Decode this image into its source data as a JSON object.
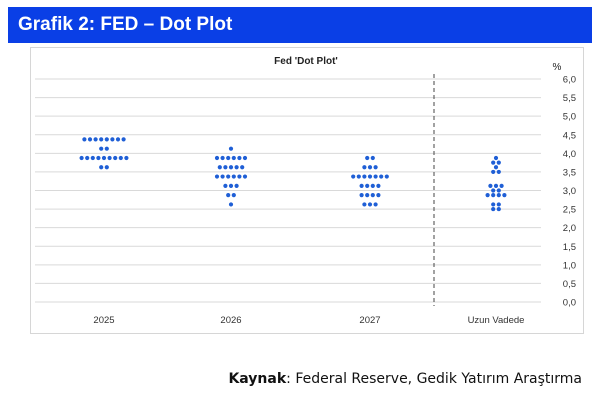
{
  "header": {
    "title": "Grafik 2: FED – Dot Plot"
  },
  "source": {
    "label": "Kaynak",
    "separator": ": ",
    "text": "Federal Reserve, Gedik Yatırım Araştırma"
  },
  "colors": {
    "banner": "#0a3fe6",
    "dot": "#1f5fd6",
    "grid": "#d9d9d9",
    "divider": "#444444"
  },
  "chart_data": {
    "type": "scatter",
    "title": "Fed 'Dot Plot'",
    "unit_label": "%",
    "categories": [
      "2025",
      "2026",
      "2027",
      "Uzun Vadede"
    ],
    "divider_before_category": 3,
    "ylim": [
      0,
      6
    ],
    "yticks": [
      "0,0",
      "0,5",
      "1,0",
      "1,5",
      "2,0",
      "2,5",
      "3,0",
      "3,5",
      "4,0",
      "4,5",
      "5,0",
      "5,5",
      "6,0"
    ],
    "grid": true,
    "y_axis_side": "right",
    "dots": [
      {
        "category": "2025",
        "value": 4.375,
        "count": 8
      },
      {
        "category": "2025",
        "value": 4.125,
        "count": 2
      },
      {
        "category": "2025",
        "value": 3.875,
        "count": 9
      },
      {
        "category": "2025",
        "value": 3.625,
        "count": 2
      },
      {
        "category": "2026",
        "value": 4.125,
        "count": 1
      },
      {
        "category": "2026",
        "value": 3.875,
        "count": 6
      },
      {
        "category": "2026",
        "value": 3.625,
        "count": 5
      },
      {
        "category": "2026",
        "value": 3.375,
        "count": 6
      },
      {
        "category": "2026",
        "value": 3.125,
        "count": 3
      },
      {
        "category": "2026",
        "value": 2.875,
        "count": 2
      },
      {
        "category": "2026",
        "value": 2.625,
        "count": 1
      },
      {
        "category": "2027",
        "value": 3.875,
        "count": 2
      },
      {
        "category": "2027",
        "value": 3.625,
        "count": 3
      },
      {
        "category": "2027",
        "value": 3.375,
        "count": 7
      },
      {
        "category": "2027",
        "value": 3.125,
        "count": 4
      },
      {
        "category": "2027",
        "value": 2.875,
        "count": 4
      },
      {
        "category": "2027",
        "value": 2.625,
        "count": 3
      },
      {
        "category": "Uzun Vadede",
        "value": 3.875,
        "count": 1
      },
      {
        "category": "Uzun Vadede",
        "value": 3.75,
        "count": 2
      },
      {
        "category": "Uzun Vadede",
        "value": 3.625,
        "count": 1
      },
      {
        "category": "Uzun Vadede",
        "value": 3.5,
        "count": 2
      },
      {
        "category": "Uzun Vadede",
        "value": 3.125,
        "count": 3
      },
      {
        "category": "Uzun Vadede",
        "value": 3.0,
        "count": 2
      },
      {
        "category": "Uzun Vadede",
        "value": 2.875,
        "count": 4
      },
      {
        "category": "Uzun Vadede",
        "value": 2.625,
        "count": 2
      },
      {
        "category": "Uzun Vadede",
        "value": 2.5,
        "count": 2
      }
    ]
  }
}
